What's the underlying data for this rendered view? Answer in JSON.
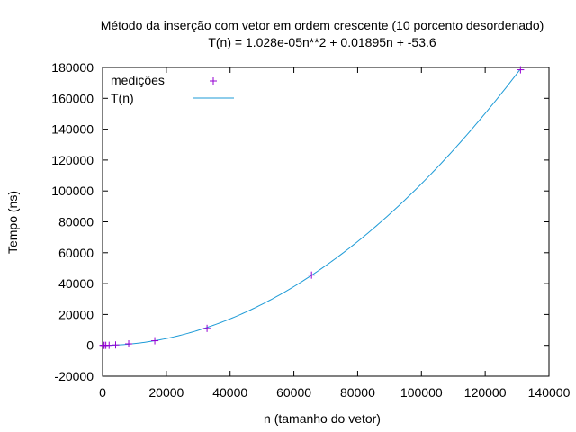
{
  "chart_data": {
    "type": "scatter",
    "title": "Método da inserção com vetor em ordem crescente (10 porcento desordenado)",
    "subtitle": "T(n) = 1.028e-05n**2 + 0.01895n + -53.6",
    "xlabel": "n (tamanho do vetor)",
    "ylabel": "Tempo (ns)",
    "xlim": [
      0,
      140000
    ],
    "ylim": [
      -20000,
      180000
    ],
    "x_ticks": [
      0,
      20000,
      40000,
      60000,
      80000,
      100000,
      120000,
      140000
    ],
    "y_ticks": [
      -20000,
      0,
      20000,
      40000,
      60000,
      80000,
      100000,
      120000,
      140000,
      160000,
      180000
    ],
    "grid": false,
    "legend_position": "top-left",
    "series": [
      {
        "name": "medições",
        "kind": "points",
        "marker": "+",
        "color": "#9400d3",
        "x": [
          128,
          256,
          512,
          1024,
          2048,
          4096,
          8192,
          16384,
          32768,
          65536,
          131072
        ],
        "y": [
          0,
          5,
          10,
          20,
          40,
          280,
          1000,
          3000,
          11000,
          45500,
          178500
        ]
      },
      {
        "name": "T(n)",
        "kind": "line",
        "color": "#1e9bd7",
        "coefficients": {
          "a": 1.028e-05,
          "b": 0.01895,
          "c": -53.6
        },
        "x_range": [
          0,
          131072
        ]
      }
    ]
  }
}
